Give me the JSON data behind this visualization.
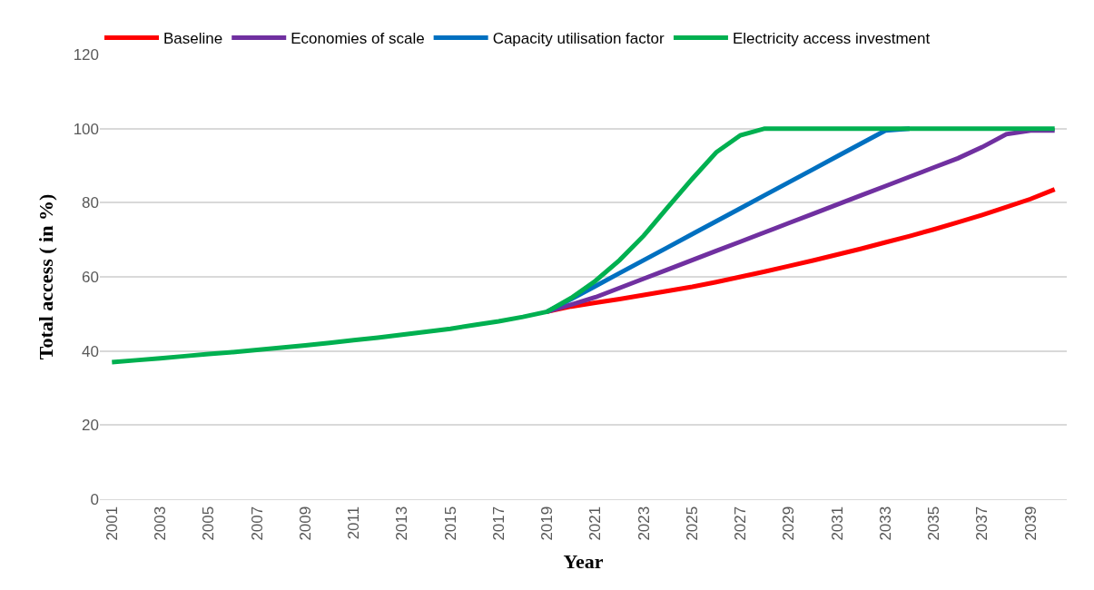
{
  "chart_data": {
    "type": "line",
    "xlabel": "Year",
    "ylabel": "Total access ( in %)",
    "x": [
      2001,
      2002,
      2003,
      2004,
      2005,
      2006,
      2007,
      2008,
      2009,
      2010,
      2011,
      2012,
      2013,
      2014,
      2015,
      2016,
      2017,
      2018,
      2019,
      2020,
      2021,
      2022,
      2023,
      2024,
      2025,
      2026,
      2027,
      2028,
      2029,
      2030,
      2031,
      2032,
      2033,
      2034,
      2035,
      2036,
      2037,
      2038,
      2039,
      2040
    ],
    "series": [
      {
        "name": "Baseline",
        "color": "#ff0000",
        "values": [
          null,
          null,
          null,
          null,
          null,
          null,
          null,
          null,
          null,
          null,
          null,
          null,
          null,
          null,
          null,
          null,
          null,
          null,
          50.6,
          52.0,
          53.0,
          54.0,
          55.1,
          56.2,
          57.3,
          58.6,
          60.0,
          61.4,
          62.9,
          64.4,
          66.0,
          67.6,
          69.3,
          71.0,
          72.8,
          74.7,
          76.7,
          78.8,
          81.0,
          83.6
        ]
      },
      {
        "name": "Economies of scale",
        "color": "#7030a0",
        "values": [
          null,
          null,
          null,
          null,
          null,
          null,
          null,
          null,
          null,
          null,
          null,
          null,
          null,
          null,
          null,
          null,
          null,
          null,
          50.6,
          52.5,
          54.5,
          57.0,
          59.5,
          62.0,
          64.5,
          67.0,
          69.5,
          72.0,
          74.5,
          77.0,
          79.5,
          82.0,
          84.5,
          87.0,
          89.5,
          92.0,
          95.0,
          98.5,
          99.5,
          99.5
        ]
      },
      {
        "name": "Capacity utilisation factor",
        "color": "#0070c0",
        "values": [
          null,
          null,
          null,
          null,
          null,
          null,
          null,
          null,
          null,
          null,
          null,
          null,
          null,
          null,
          null,
          null,
          null,
          null,
          50.6,
          54.0,
          57.5,
          61.0,
          64.5,
          68.0,
          71.5,
          75.0,
          78.5,
          82.0,
          85.5,
          89.0,
          92.5,
          96.0,
          99.5,
          100,
          null,
          null,
          null,
          null,
          null,
          null
        ]
      },
      {
        "name": "Electricity access investment",
        "color": "#00b050",
        "values": [
          37.0,
          37.5,
          38.0,
          38.6,
          39.2,
          39.7,
          40.3,
          40.9,
          41.5,
          42.2,
          42.9,
          43.6,
          44.4,
          45.2,
          46.0,
          47.0,
          48.0,
          49.2,
          50.6,
          54.3,
          58.9,
          64.5,
          71.1,
          78.8,
          86.4,
          93.6,
          98.2,
          100,
          100,
          100,
          100,
          100,
          100,
          100,
          100,
          100,
          100,
          100,
          100,
          100
        ]
      }
    ],
    "xlim": [
      2000.5,
      2040.5
    ],
    "xticks": [
      2001,
      2003,
      2005,
      2007,
      2009,
      2011,
      2013,
      2015,
      2017,
      2019,
      2021,
      2023,
      2025,
      2027,
      2029,
      2031,
      2033,
      2035,
      2037,
      2039
    ],
    "ylim": [
      0,
      120
    ],
    "yticks": [
      0,
      20,
      40,
      60,
      80,
      100,
      120
    ],
    "grid": "y",
    "legend": "top left",
    "marker": "none",
    "line_style": "solid"
  }
}
